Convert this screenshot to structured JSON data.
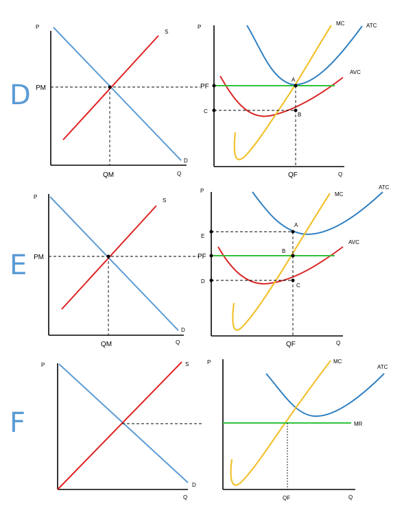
{
  "rows": [
    {
      "letter": "D",
      "market": {
        "y_axis": "P",
        "x_axis": "Q",
        "supply": "S",
        "demand": "D",
        "price": "PM",
        "quantity": "QM"
      },
      "firm": {
        "y_axis": "P",
        "x_axis": "Q",
        "mc": "MC",
        "atc": "ATC",
        "avc": "AVC",
        "price": "PF",
        "quantity": "QF",
        "left_labels": [
          "PF",
          "C"
        ],
        "points": [
          "A",
          "B"
        ]
      }
    },
    {
      "letter": "E",
      "market": {
        "y_axis": "P",
        "x_axis": "Q",
        "supply": "S",
        "demand": "D",
        "price": "PM",
        "quantity": "QM"
      },
      "firm": {
        "y_axis": "P",
        "x_axis": "Q",
        "mc": "MC",
        "atc": "ATC",
        "avc": "AVC",
        "price": "PF",
        "quantity": "QF",
        "left_labels": [
          "E",
          "PF",
          "D"
        ],
        "points": [
          "A",
          "B",
          "C"
        ]
      }
    },
    {
      "letter": "F",
      "market": {
        "y_axis": "P",
        "x_axis": "Q",
        "supply": "S",
        "demand": "D"
      },
      "firm": {
        "y_axis": "P",
        "x_axis": "Q",
        "mc": "MC",
        "atc": "ATC",
        "mr": "MR",
        "quantity": "QF"
      }
    }
  ],
  "colors": {
    "demand": "#5b9bd5",
    "supply": "#e02020",
    "mc": "#f2c12e",
    "atc": "#2e7fc1",
    "avc": "#d92626",
    "price_line": "#2ec13a",
    "letter": "#5b9bd5"
  }
}
